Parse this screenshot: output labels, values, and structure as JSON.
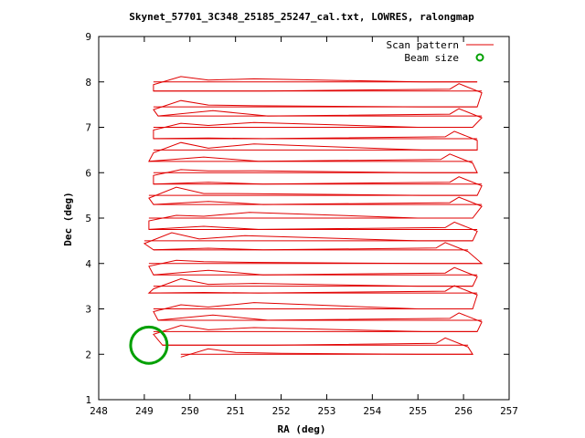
{
  "chart_data": {
    "type": "line",
    "title": "Skynet_57701_3C348_25185_25247_cal.txt, LOWRES, ralongmap",
    "xlabel": "RA (deg)",
    "ylabel": "Dec (deg)",
    "xlim": [
      248,
      257
    ],
    "ylim": [
      1,
      9
    ],
    "xticks": [
      "248",
      "249",
      "250",
      "251",
      "252",
      "253",
      "254",
      "255",
      "256",
      "257"
    ],
    "yticks": [
      "1",
      "2",
      "3",
      "4",
      "5",
      "6",
      "7",
      "8",
      "9"
    ],
    "grid": false,
    "legend_position": "top-right",
    "colors": {
      "scan": "#e00000",
      "beam": "#00a000"
    },
    "series": [
      {
        "name": "Scan pattern",
        "rows": [
          {
            "dec": 2.0,
            "start": 249.8,
            "end": 256.2
          },
          {
            "dec": 2.2,
            "start": 249.4,
            "end": 256.1
          },
          {
            "dec": 2.5,
            "start": 249.2,
            "end": 256.3
          },
          {
            "dec": 2.75,
            "start": 249.3,
            "end": 256.4
          },
          {
            "dec": 3.0,
            "start": 249.2,
            "end": 256.2
          },
          {
            "dec": 3.35,
            "start": 249.1,
            "end": 256.3
          },
          {
            "dec": 3.5,
            "start": 249.2,
            "end": 256.2
          },
          {
            "dec": 3.75,
            "start": 249.2,
            "end": 256.3
          },
          {
            "dec": 4.0,
            "start": 249.1,
            "end": 256.4
          },
          {
            "dec": 4.3,
            "start": 249.2,
            "end": 256.1
          },
          {
            "dec": 4.5,
            "start": 249.0,
            "end": 256.2
          },
          {
            "dec": 4.75,
            "start": 249.1,
            "end": 256.3
          },
          {
            "dec": 5.0,
            "start": 249.1,
            "end": 256.2
          },
          {
            "dec": 5.3,
            "start": 249.2,
            "end": 256.4
          },
          {
            "dec": 5.5,
            "start": 249.1,
            "end": 256.3
          },
          {
            "dec": 5.75,
            "start": 249.2,
            "end": 256.4
          },
          {
            "dec": 6.0,
            "start": 249.2,
            "end": 256.3
          },
          {
            "dec": 6.25,
            "start": 249.1,
            "end": 256.2
          },
          {
            "dec": 6.5,
            "start": 249.2,
            "end": 256.3
          },
          {
            "dec": 6.75,
            "start": 249.2,
            "end": 256.3
          },
          {
            "dec": 7.0,
            "start": 249.2,
            "end": 256.2
          },
          {
            "dec": 7.25,
            "start": 249.3,
            "end": 256.4
          },
          {
            "dec": 7.45,
            "start": 249.2,
            "end": 256.3
          },
          {
            "dec": 7.8,
            "start": 249.2,
            "end": 256.4
          },
          {
            "dec": 8.0,
            "start": 249.2,
            "end": 256.3
          }
        ]
      },
      {
        "name": "Beam size",
        "center": {
          "x": 249.1,
          "y": 2.2
        },
        "radius_deg": 0.4
      }
    ]
  }
}
